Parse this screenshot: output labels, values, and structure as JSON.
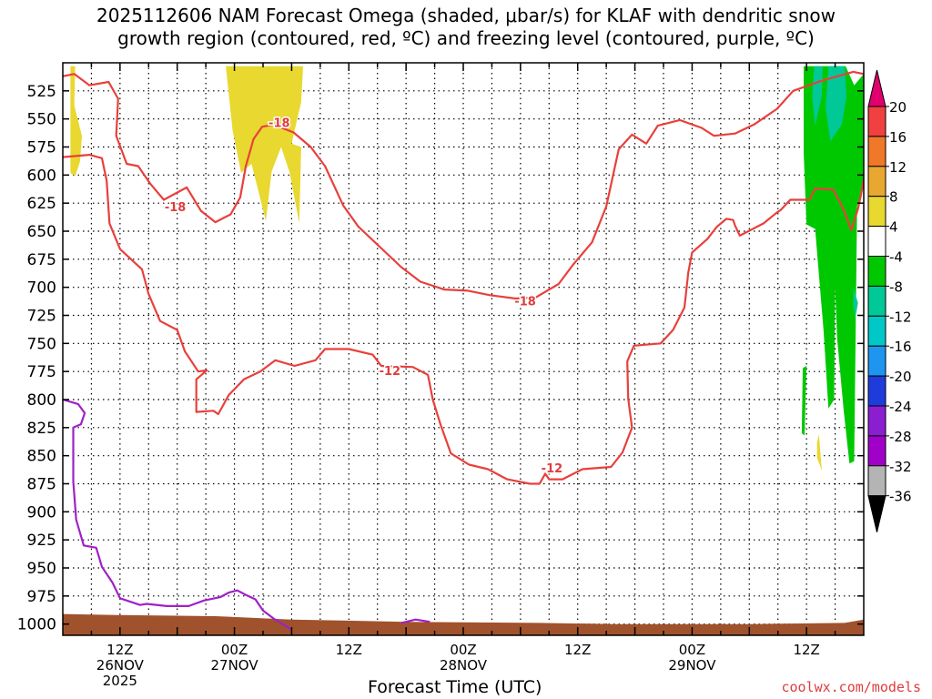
{
  "header": {
    "title_line1": "2025112606 NAM Forecast Omega (shaded, μbar/s) for KLAF with dendritic snow",
    "title_line2": "growth region (contoured, red, ºC) and freezing level (contoured, purple, ºC)"
  },
  "footer": {
    "credit": "coolwx.com/models"
  },
  "chart_data": {
    "type": "contour",
    "xlabel": "Forecast Time (UTC)",
    "x_range_hours_from_start": [
      0,
      84
    ],
    "y_axis": {
      "scale": "pressure",
      "ylim": [
        500,
        1010
      ],
      "tick_labels": [
        "525",
        "550",
        "575",
        "600",
        "625",
        "650",
        "675",
        "700",
        "725",
        "750",
        "775",
        "800",
        "825",
        "850",
        "875",
        "900",
        "925",
        "950",
        "975",
        "1000"
      ]
    },
    "x_ticks": [
      {
        "hour": 6,
        "lines": [
          "12Z",
          "26NOV",
          "2025"
        ]
      },
      {
        "hour": 18,
        "lines": [
          "00Z",
          "27NOV"
        ]
      },
      {
        "hour": 30,
        "lines": [
          "12Z"
        ]
      },
      {
        "hour": 42,
        "lines": [
          "00Z",
          "28NOV"
        ]
      },
      {
        "hour": 54,
        "lines": [
          "12Z"
        ]
      },
      {
        "hour": 66,
        "lines": [
          "00Z",
          "29NOV"
        ]
      },
      {
        "hour": 78,
        "lines": [
          "12Z"
        ]
      }
    ],
    "grid": true,
    "colorbar": {
      "levels": [
        "20",
        "16",
        "12",
        "8",
        "4",
        "-4",
        "-8",
        "-12",
        "-16",
        "-20",
        "-24",
        "-28",
        "-32",
        "-36"
      ],
      "colors": [
        "#e0006e",
        "#f04040",
        "#f07828",
        "#e8a830",
        "#e8d830",
        "#ffffff",
        "#00c800",
        "#00c896",
        "#00c8c8",
        "#1e96f0",
        "#1e3cdc",
        "#8c1ed2",
        "#a000c8",
        "#b4b4b4",
        "#000000"
      ]
    },
    "contour_labels": [
      {
        "text": "-18",
        "hour": 11.8,
        "p": 628,
        "color": "#e03c3c"
      },
      {
        "text": "-18",
        "hour": 22.7,
        "p": 553,
        "color": "#e03c3c"
      },
      {
        "text": "-18",
        "hour": 48.5,
        "p": 712,
        "color": "#e03c3c"
      },
      {
        "text": "-12",
        "hour": 34.3,
        "p": 774,
        "color": "#e03c3c"
      },
      {
        "text": "-12",
        "hour": 51.3,
        "p": 861,
        "color": "#e03c3c"
      }
    ],
    "contours": [
      {
        "name": "dgz-cold",
        "color": "#e8403c",
        "points": [
          [
            0,
            512
          ],
          [
            1.2,
            510
          ],
          [
            2.8,
            520
          ],
          [
            4.8,
            517
          ],
          [
            5.8,
            532
          ],
          [
            5.6,
            565
          ],
          [
            6.7,
            590
          ],
          [
            7.9,
            592
          ],
          [
            9.2,
            608
          ],
          [
            10.6,
            622
          ],
          [
            13.0,
            611
          ],
          [
            14.5,
            632
          ],
          [
            16.0,
            642
          ],
          [
            17.6,
            635
          ],
          [
            18.6,
            620
          ],
          [
            19.2,
            592
          ],
          [
            20.0,
            568
          ],
          [
            20.9,
            557
          ],
          [
            22.1,
            555
          ],
          [
            24.2,
            562
          ],
          [
            26.0,
            575
          ],
          [
            27.5,
            592
          ],
          [
            29.4,
            627
          ],
          [
            31.0,
            646
          ],
          [
            35.5,
            682
          ],
          [
            37.5,
            695
          ],
          [
            40.0,
            702
          ],
          [
            42.5,
            703
          ],
          [
            44.8,
            707
          ],
          [
            47.5,
            710
          ],
          [
            49.6,
            709
          ],
          [
            52.0,
            697
          ],
          [
            53.5,
            680
          ],
          [
            55.5,
            660
          ],
          [
            57.0,
            628
          ],
          [
            58.3,
            577
          ],
          [
            59.7,
            564
          ],
          [
            61.2,
            572
          ],
          [
            62.4,
            556
          ],
          [
            64.7,
            551
          ],
          [
            67.0,
            558
          ],
          [
            68.3,
            565
          ],
          [
            70.5,
            563
          ],
          [
            72.5,
            555
          ],
          [
            74.9,
            541
          ],
          [
            76.6,
            525
          ],
          [
            79.6,
            516
          ],
          [
            82.9,
            508
          ],
          [
            84,
            510
          ]
        ]
      },
      {
        "name": "dgz-warm",
        "color": "#e8403c",
        "points": [
          [
            0,
            584
          ],
          [
            2.8,
            582
          ],
          [
            4.1,
            585
          ],
          [
            4.6,
            605
          ],
          [
            4.9,
            643
          ],
          [
            6.0,
            666
          ],
          [
            8.3,
            684
          ],
          [
            9.0,
            706
          ],
          [
            10.2,
            730
          ],
          [
            12.0,
            738
          ],
          [
            12.8,
            757
          ],
          [
            14.2,
            775
          ],
          [
            15.1,
            774
          ],
          [
            14.0,
            782
          ],
          [
            14.0,
            811
          ],
          [
            15.8,
            810
          ],
          [
            16.3,
            813
          ],
          [
            17.4,
            796
          ],
          [
            19.0,
            782
          ],
          [
            20.7,
            775
          ],
          [
            22.3,
            765
          ],
          [
            24.3,
            770
          ],
          [
            26.5,
            765
          ],
          [
            27.5,
            755
          ],
          [
            30.0,
            755
          ],
          [
            32.5,
            760
          ],
          [
            33.4,
            770
          ],
          [
            36.7,
            771
          ],
          [
            38.3,
            778
          ],
          [
            38.8,
            800
          ],
          [
            39.6,
            822
          ],
          [
            40.7,
            848
          ],
          [
            42.6,
            858
          ],
          [
            44.6,
            862
          ],
          [
            46.6,
            871
          ],
          [
            49.0,
            875
          ],
          [
            50.0,
            875
          ],
          [
            50.6,
            866
          ],
          [
            51.0,
            871
          ],
          [
            52.4,
            871
          ],
          [
            54.5,
            862
          ],
          [
            57.5,
            860
          ],
          [
            58.7,
            847
          ],
          [
            59.7,
            825
          ],
          [
            59.3,
            799
          ],
          [
            59.2,
            766
          ],
          [
            59.9,
            752
          ],
          [
            62.7,
            750
          ],
          [
            64.0,
            738
          ],
          [
            65.2,
            718
          ],
          [
            65.6,
            687
          ],
          [
            66.0,
            669
          ],
          [
            67.6,
            657
          ],
          [
            68.6,
            646
          ],
          [
            69.6,
            639
          ],
          [
            70.3,
            640
          ],
          [
            70.5,
            645
          ],
          [
            71.0,
            654
          ],
          [
            73.5,
            643
          ],
          [
            74.8,
            634
          ],
          [
            75.3,
            631
          ],
          [
            76.3,
            622
          ],
          [
            78.3,
            622
          ],
          [
            78.9,
            612
          ],
          [
            80.8,
            613
          ],
          [
            81.9,
            631
          ],
          [
            82.7,
            649
          ],
          [
            83.4,
            630
          ],
          [
            83.7,
            618
          ],
          [
            84,
            603
          ]
        ]
      },
      {
        "name": "freezing-level",
        "color": "#a020c8",
        "points": [
          [
            0,
            800
          ],
          [
            1.6,
            804
          ],
          [
            2.3,
            812
          ],
          [
            1.9,
            822
          ],
          [
            1.1,
            825
          ],
          [
            1.1,
            873
          ],
          [
            1.4,
            907
          ],
          [
            2.2,
            930
          ],
          [
            3.5,
            932
          ],
          [
            4.1,
            949
          ],
          [
            5.2,
            963
          ],
          [
            6.0,
            977
          ],
          [
            8.1,
            983
          ],
          [
            8.8,
            982
          ],
          [
            10.9,
            984
          ],
          [
            13.2,
            984
          ],
          [
            14.8,
            979
          ],
          [
            16.5,
            976
          ],
          [
            17.4,
            972
          ],
          [
            18.3,
            970
          ],
          [
            19.2,
            974
          ],
          [
            20.2,
            978
          ],
          [
            21.0,
            988
          ],
          [
            22.1,
            995
          ],
          [
            24,
            1005
          ]
        ]
      },
      {
        "name": "freezing-level-2",
        "color": "#a020c8",
        "points": [
          [
            35.5,
            999
          ],
          [
            37.0,
            996
          ],
          [
            38.5,
            998
          ]
        ]
      }
    ],
    "shading": [
      {
        "level": "4 to 8",
        "color": "#e8d830",
        "points": [
          [
            0.8,
            503
          ],
          [
            1.3,
            503
          ],
          [
            1.2,
            538
          ],
          [
            2.0,
            565
          ],
          [
            1.8,
            588
          ],
          [
            1.3,
            601
          ],
          [
            0.8,
            598
          ]
        ]
      },
      {
        "level": "4 to 8",
        "color": "#e8d830",
        "points": [
          [
            17.1,
            503
          ],
          [
            25.2,
            503
          ],
          [
            25.0,
            535
          ],
          [
            24.5,
            553
          ],
          [
            24.0,
            572
          ],
          [
            25.0,
            575
          ],
          [
            24.8,
            643
          ],
          [
            23.8,
            598
          ],
          [
            22.9,
            575
          ],
          [
            21.9,
            597
          ],
          [
            21.3,
            641
          ],
          [
            19.8,
            590
          ],
          [
            18.7,
            598
          ],
          [
            17.8,
            560
          ]
        ]
      },
      {
        "level": "4 to 8",
        "color": "#e8d830",
        "points": [
          [
            79.3,
            831
          ],
          [
            79.6,
            863
          ],
          [
            79.1,
            852
          ],
          [
            79.1,
            838
          ]
        ]
      },
      {
        "level": "-4 to -8",
        "color": "#00c800",
        "points": [
          [
            77.7,
            503
          ],
          [
            78.4,
            503
          ],
          [
            81.3,
            503
          ],
          [
            82.1,
            503
          ],
          [
            83.0,
            520
          ],
          [
            84,
            510
          ],
          [
            84,
            611
          ],
          [
            83.3,
            628
          ],
          [
            83.0,
            855
          ],
          [
            82.5,
            857
          ],
          [
            81.9,
            810
          ],
          [
            81.2,
            745
          ],
          [
            81.0,
            700
          ],
          [
            80.9,
            800
          ],
          [
            80.3,
            808
          ],
          [
            79.8,
            740
          ],
          [
            78.9,
            648
          ],
          [
            78.0,
            644
          ],
          [
            77.7,
            580
          ]
        ]
      },
      {
        "level": "-4 to -8",
        "color": "#00c800",
        "points": [
          [
            77.6,
            772
          ],
          [
            78.0,
            770
          ],
          [
            77.8,
            832
          ],
          [
            77.5,
            830
          ]
        ]
      },
      {
        "level": "-8 to -12",
        "color": "#00c896",
        "points": [
          [
            78.8,
            503
          ],
          [
            79.7,
            503
          ],
          [
            79.6,
            530
          ],
          [
            78.9,
            556
          ],
          [
            78.6,
            530
          ]
        ]
      },
      {
        "level": "-8 to -12",
        "color": "#00c896",
        "points": [
          [
            80.3,
            503
          ],
          [
            82.0,
            503
          ],
          [
            82.2,
            530
          ],
          [
            81.7,
            555
          ],
          [
            80.5,
            570
          ],
          [
            80.0,
            540
          ]
        ]
      },
      {
        "level": "-8 to -12",
        "color": "#00c896",
        "points": [
          [
            82.9,
            700
          ],
          [
            83.4,
            714
          ],
          [
            83.1,
            728
          ],
          [
            82.9,
            715
          ]
        ]
      }
    ],
    "terrain": {
      "color": "#a0522d",
      "surface": [
        [
          0,
          991
        ],
        [
          6,
          992
        ],
        [
          16,
          993
        ],
        [
          24,
          996
        ],
        [
          36,
          998
        ],
        [
          50,
          999
        ],
        [
          58,
          1000
        ],
        [
          72,
          1000
        ],
        [
          82,
          999
        ],
        [
          84,
          996
        ]
      ]
    }
  }
}
